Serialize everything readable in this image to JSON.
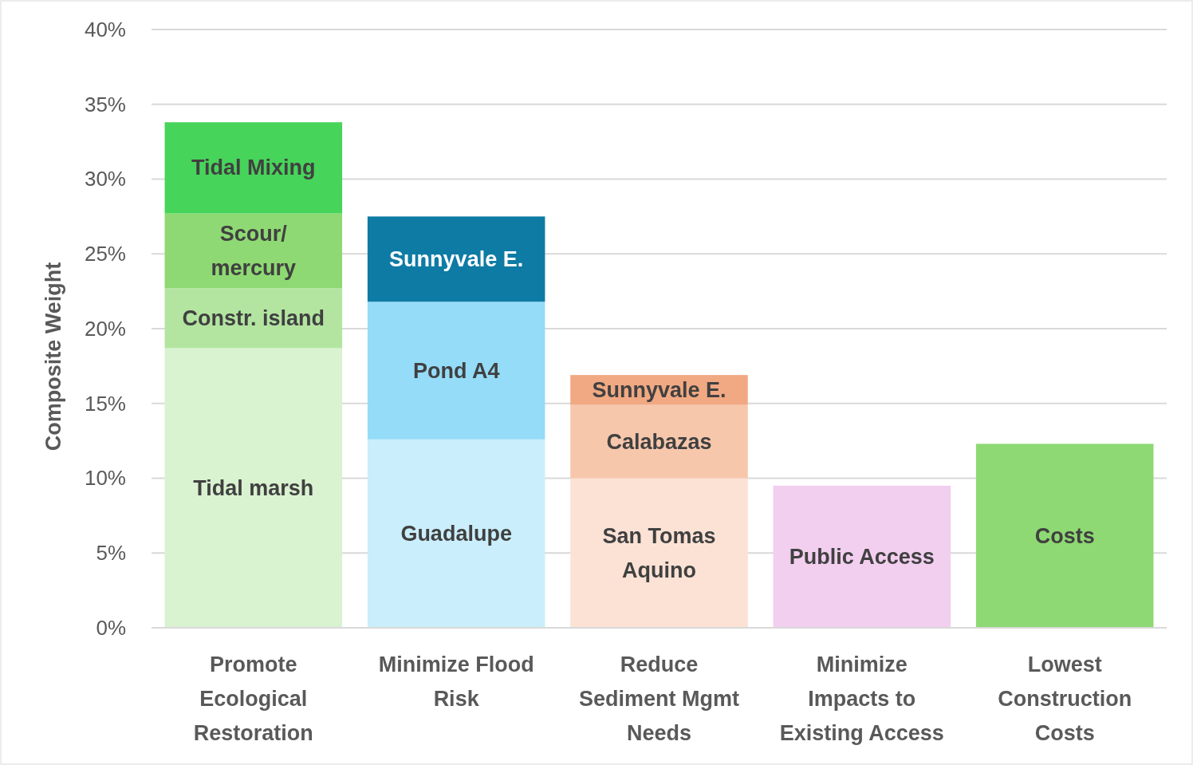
{
  "chart_data": {
    "type": "bar",
    "stacked": true,
    "ylabel": "Composite Weight",
    "grid": "y",
    "categories": [
      "Promote Ecological Restoration",
      "Minimize Flood Risk",
      "Reduce Sediment Mgmt Needs",
      "Minimize Impacts to Existing Access",
      "Lowest Construction Costs"
    ],
    "ylim": [
      0,
      0.4
    ],
    "yticks": [
      {
        "value": 0,
        "label": "0%"
      },
      {
        "value": 0.05,
        "label": "5%"
      },
      {
        "value": 0.1,
        "label": "10%"
      },
      {
        "value": 0.15,
        "label": "15%"
      },
      {
        "value": 0.2,
        "label": "20%"
      },
      {
        "value": 0.25,
        "label": "25%"
      },
      {
        "value": 0.3,
        "label": "30%"
      },
      {
        "value": 0.35,
        "label": "35%"
      },
      {
        "value": 0.4,
        "label": "40%"
      }
    ],
    "series": [
      {
        "name": "Tidal marsh",
        "color": "#d9f2d0",
        "values": [
          0.187,
          null,
          null,
          null,
          null
        ]
      },
      {
        "name": "Guadalupe",
        "color": "#caeefb",
        "values": [
          null,
          0.126,
          null,
          null,
          null
        ]
      },
      {
        "name": "San Tomas Aquino",
        "color": "#fbe2d5",
        "values": [
          null,
          null,
          0.1,
          null,
          null
        ]
      },
      {
        "name": "Public Access",
        "color": "#f2ceef",
        "values": [
          null,
          null,
          null,
          0.095,
          null
        ]
      },
      {
        "name": "Costs",
        "color": "#8ed973",
        "values": [
          null,
          null,
          null,
          null,
          0.123
        ]
      },
      {
        "name": "Constr. island",
        "color": "#b3e5a1",
        "values": [
          0.04,
          null,
          null,
          null,
          null
        ]
      },
      {
        "name": "Pond A4",
        "color": "#94dcf8",
        "values": [
          null,
          0.092,
          null,
          null,
          null
        ]
      },
      {
        "name": "Calabazas",
        "color": "#f7c7ac",
        "values": [
          null,
          null,
          0.049,
          null,
          null
        ]
      },
      {
        "name": "Scour/ mercury",
        "color": "#8ed973",
        "values": [
          0.05,
          null,
          null,
          null,
          null
        ]
      },
      {
        "name": "Sunnyvale E.",
        "color": "#0e7ba5",
        "values": [
          null,
          0.057,
          null,
          null,
          null
        ]
      },
      {
        "name": "Sunnyvale E.",
        "color": "#f1a983",
        "values": [
          null,
          null,
          0.02,
          null,
          null
        ]
      },
      {
        "name": "Tidal Mixing",
        "color": "#47d45a",
        "values": [
          0.061,
          null,
          null,
          null,
          null
        ]
      }
    ]
  }
}
